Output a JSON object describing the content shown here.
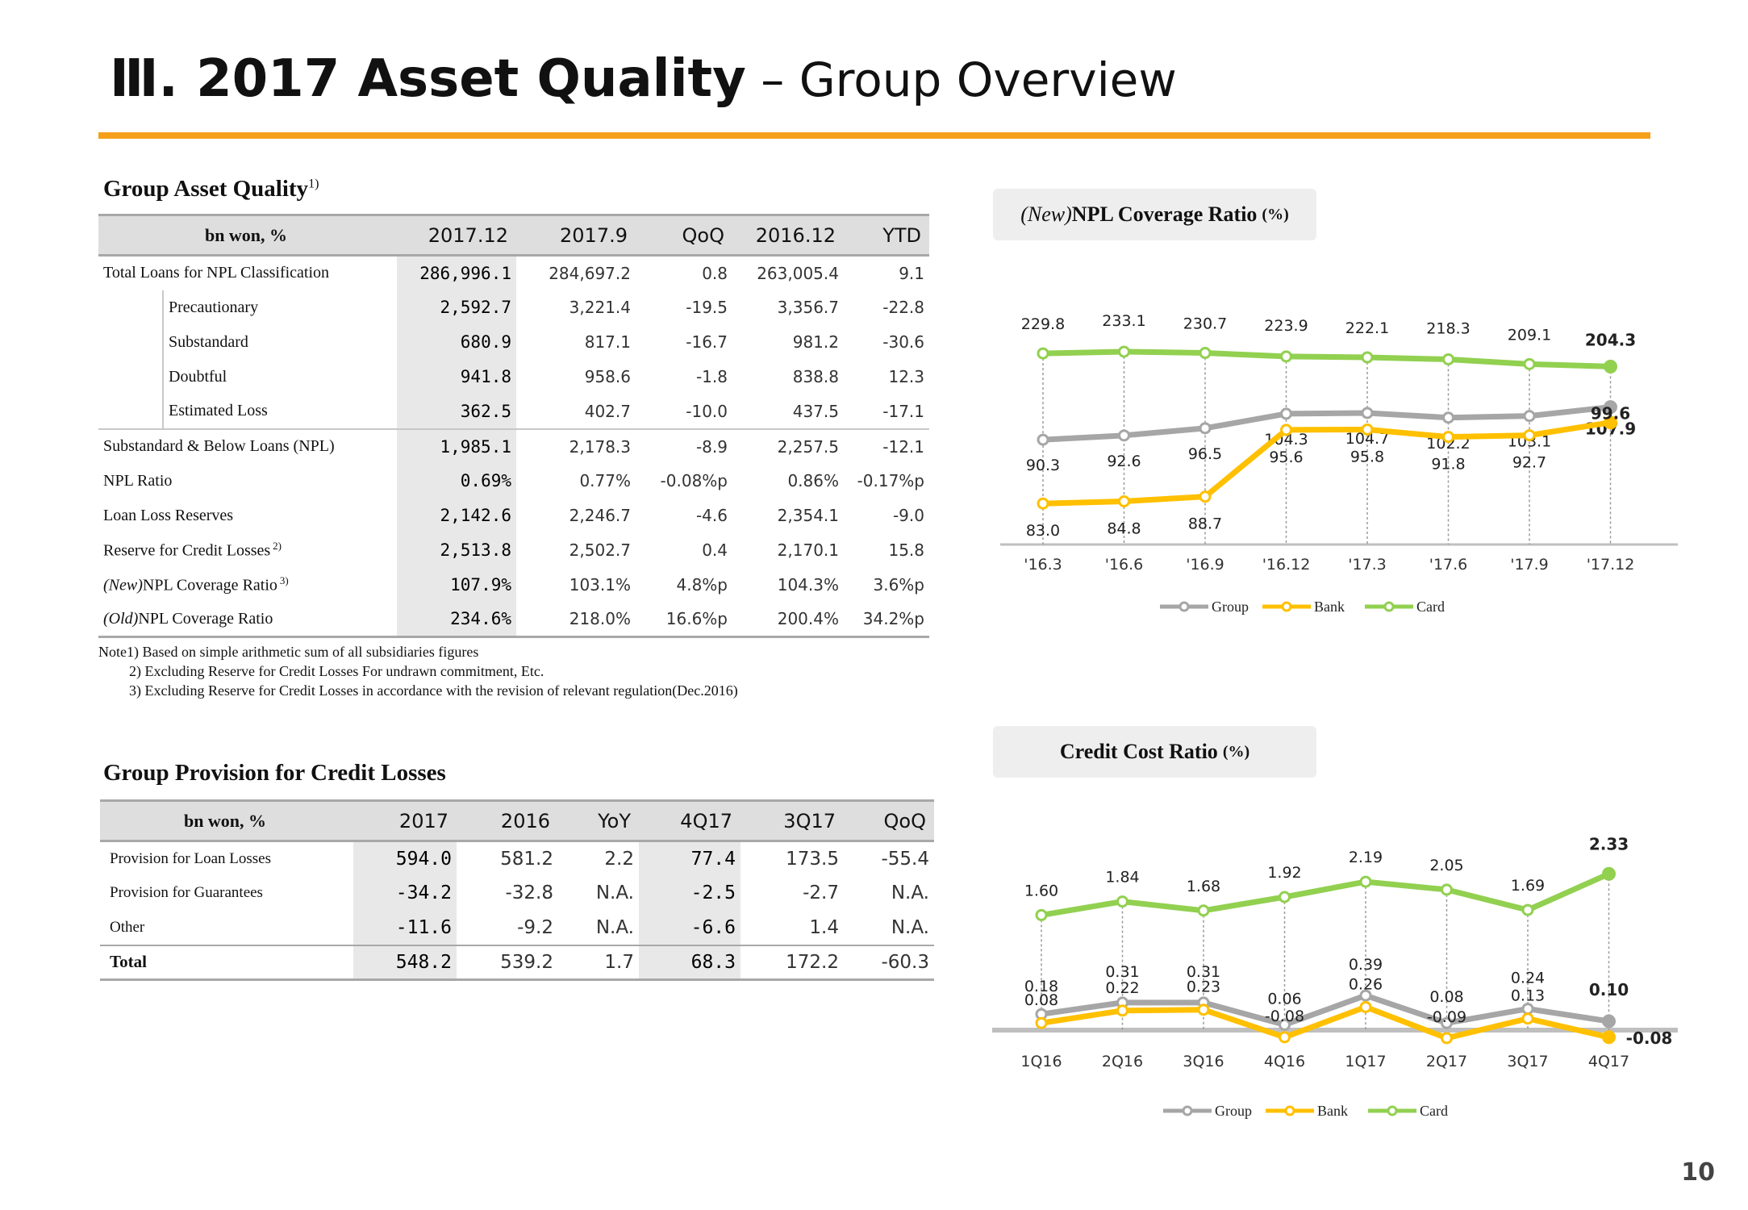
{
  "header": {
    "title_bold": "Ⅲ. 2017 Asset Quality",
    "title_sep": " – ",
    "title_light": "Group Overview"
  },
  "asset_quality": {
    "heading": "Group Asset Quality",
    "heading_sup": "1)",
    "unit_header": "bn won, %",
    "columns": [
      "2017.12",
      "2017.9",
      "QoQ",
      "2016.12",
      "YTD"
    ],
    "rows": [
      {
        "label": "Total Loans for NPL Classification",
        "values": [
          "286,996.1",
          "284,697.2",
          "0.8",
          "263,005.4",
          "9.1"
        ]
      },
      {
        "label": "Precautionary",
        "values": [
          "2,592.7",
          "3,221.4",
          "-19.5",
          "3,356.7",
          "-22.8"
        ]
      },
      {
        "label": "Substandard",
        "values": [
          "680.9",
          "817.1",
          "-16.7",
          "981.2",
          "-30.6"
        ]
      },
      {
        "label": "Doubtful",
        "values": [
          "941.8",
          "958.6",
          "-1.8",
          "838.8",
          "12.3"
        ]
      },
      {
        "label": "Estimated Loss",
        "values": [
          "362.5",
          "402.7",
          "-10.0",
          "437.5",
          "-17.1"
        ]
      },
      {
        "label": "Substandard & Below Loans (NPL)",
        "values": [
          "1,985.1",
          "2,178.3",
          "-8.9",
          "2,257.5",
          "-12.1"
        ]
      },
      {
        "label": "NPL Ratio",
        "values": [
          "0.69%",
          "0.77%",
          "-0.08%p",
          "0.86%",
          "-0.17%p"
        ]
      },
      {
        "label": "Loan Loss Reserves",
        "values": [
          "2,142.6",
          "2,246.7",
          "-4.6",
          "2,354.1",
          "-9.0"
        ]
      },
      {
        "label": "Reserve for Credit Losses",
        "sup": "2)",
        "values": [
          "2,513.8",
          "2,502.7",
          "0.4",
          "2,170.1",
          "15.8"
        ]
      },
      {
        "label_prefix": "(New)",
        "label": "NPL Coverage Ratio",
        "sup": "3)",
        "values": [
          "107.9%",
          "103.1%",
          "4.8%p",
          "104.3%",
          "3.6%p"
        ]
      },
      {
        "label_prefix": "(Old)",
        "label": "NPL Coverage Ratio",
        "values": [
          "234.6%",
          "218.0%",
          "16.6%p",
          "200.4%",
          "34.2%p"
        ]
      }
    ],
    "notes": [
      "Note1) Based on simple arithmetic sum of all subsidiaries figures",
      "2) Excluding Reserve for Credit Losses For undrawn commitment, Etc.",
      "3) Excluding Reserve for Credit Losses in accordance with the revision of relevant regulation(Dec.2016)"
    ]
  },
  "provision": {
    "heading": "Group Provision for Credit Losses",
    "unit_header": "bn won, %",
    "columns": [
      "2017",
      "2016",
      "YoY",
      "4Q17",
      "3Q17",
      "QoQ"
    ],
    "rows": [
      {
        "label": "Provision for Loan Losses",
        "values": [
          "594.0",
          "581.2",
          "2.2",
          "77.4",
          "173.5",
          "-55.4"
        ]
      },
      {
        "label": "Provision for Guarantees",
        "values": [
          "-34.2",
          "-32.8",
          "N.A.",
          "-2.5",
          "-2.7",
          "N.A."
        ]
      },
      {
        "label": "Other",
        "values": [
          "-11.6",
          "-9.2",
          "N.A.",
          "-6.6",
          "1.4",
          "N.A."
        ]
      },
      {
        "label": "Total",
        "values": [
          "548.2",
          "539.2",
          "1.7",
          "68.3",
          "172.2",
          "-60.3"
        ]
      }
    ]
  },
  "chart_npl": {
    "title_prefix": "(New)",
    "title": "NPL Coverage Ratio",
    "title_unit": "(%)"
  },
  "chart_credit": {
    "title": "Credit Cost Ratio",
    "title_unit": "(%)"
  },
  "page_number": "10",
  "colors": {
    "group": "#a6a6a6",
    "bank": "#ffc000",
    "card": "#92d050",
    "accent": "#f5a01a"
  },
  "chart_data": [
    {
      "type": "line",
      "title": "(New)NPL Coverage Ratio (%)",
      "x": [
        "'16.3",
        "'16.6",
        "'16.9",
        "'16.12",
        "'17.3",
        "'17.6",
        "'17.9",
        "'17.12"
      ],
      "series": [
        {
          "name": "Group",
          "values": [
            90.3,
            92.6,
            96.5,
            104.3,
            104.7,
            102.2,
            103.1,
            107.9
          ],
          "labels": [
            "90.3",
            "92.6",
            "96.5",
            "104.3",
            "104.7",
            "102.2",
            "103.1",
            "107.9"
          ]
        },
        {
          "name": "Bank",
          "values": [
            83.0,
            84.8,
            88.7,
            95.6,
            95.8,
            91.8,
            92.7,
            99.6
          ],
          "labels": [
            "83.0",
            "84.8",
            "88.7",
            "95.6",
            "95.8",
            "91.8",
            "92.7",
            "99.6"
          ]
        },
        {
          "name": "Card",
          "values": [
            229.8,
            233.1,
            230.7,
            223.9,
            222.1,
            218.3,
            209.1,
            204.3
          ],
          "labels": [
            "229.8",
            "233.1",
            "230.7",
            "223.9",
            "222.1",
            "218.3",
            "209.1",
            "204.3"
          ]
        }
      ],
      "legend": "bottom",
      "grid": false
    },
    {
      "type": "line",
      "title": "Credit Cost Ratio (%)",
      "x": [
        "1Q16",
        "2Q16",
        "3Q16",
        "4Q16",
        "1Q17",
        "2Q17",
        "3Q17",
        "4Q17"
      ],
      "series": [
        {
          "name": "Group",
          "values": [
            0.18,
            0.31,
            0.31,
            0.06,
            0.39,
            0.08,
            0.24,
            0.1
          ],
          "labels": [
            "0.18",
            "0.31",
            "0.31",
            "0.06",
            "0.39",
            "0.08",
            "0.24",
            "0.10"
          ]
        },
        {
          "name": "Bank",
          "values": [
            0.08,
            0.22,
            0.23,
            -0.08,
            0.26,
            -0.09,
            0.13,
            -0.08
          ],
          "labels": [
            "0.08",
            "0.22",
            "0.23",
            "-0.08",
            "0.26",
            "-0.09",
            "0.13",
            "-0.08"
          ]
        },
        {
          "name": "Card",
          "values": [
            1.6,
            1.84,
            1.68,
            1.92,
            2.19,
            2.05,
            1.69,
            2.33
          ],
          "labels": [
            "1.60",
            "1.84",
            "1.68",
            "1.92",
            "2.19",
            "2.05",
            "1.69",
            "2.33"
          ]
        }
      ],
      "legend": "bottom",
      "grid": false
    }
  ]
}
